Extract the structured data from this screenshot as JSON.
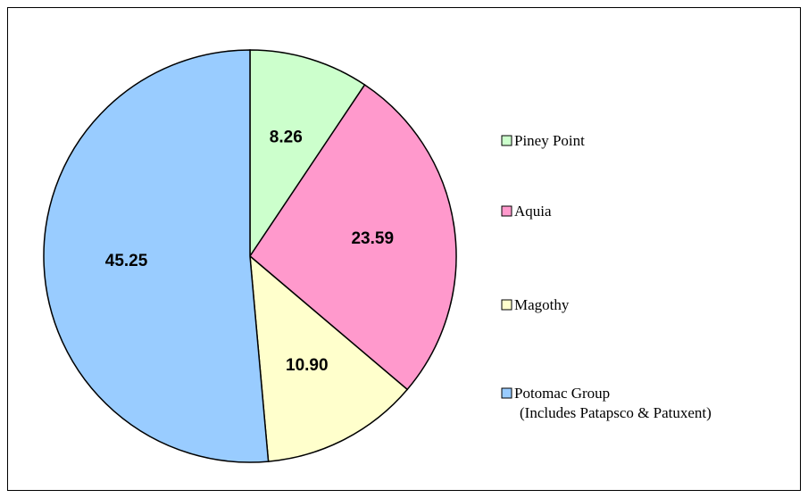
{
  "chart_data": {
    "type": "pie",
    "categories": [
      "Piney Point",
      "Aquia",
      "Magothy",
      "Potomac Group\n(Includes Patapsco & Patuxent)"
    ],
    "values": [
      8.26,
      23.59,
      10.9,
      45.25
    ],
    "value_labels": [
      "8.26",
      "23.59",
      "10.90",
      "45.25"
    ],
    "colors": [
      "#ccffcc",
      "#ff99cc",
      "#ffffcc",
      "#99ccff"
    ],
    "legend": "right"
  }
}
